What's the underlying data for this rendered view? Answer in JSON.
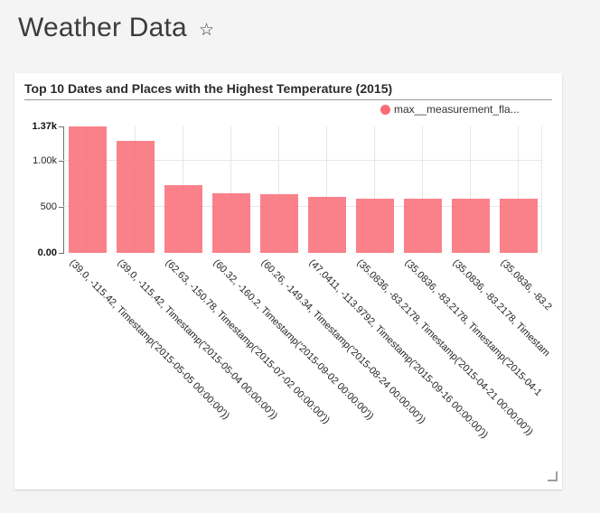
{
  "header": {
    "title": "Weather Data",
    "star_icon": "☆"
  },
  "chart": {
    "title": "Top 10 Dates and Places with the Highest Temperature (2015)",
    "legend": {
      "label": "max__measurement_fla...",
      "color": "#f96b75"
    }
  },
  "chart_data": {
    "type": "bar",
    "title": "Top 10 Dates and Places with the Highest Temperature (2015)",
    "legend_entries": [
      "max__measurement_fla..."
    ],
    "legend_position": "top-right",
    "categories": [
      "(39.0, -115.42, Timestamp('2015-05-05 00:00:00'))",
      "(39.0, -115.42, Timestamp('2015-05-04 00:00:00'))",
      "(62.63, -150.78, Timestamp('2015-07-02 00:00:00'))",
      "(60.32, -160.2, Timestamp('2015-09-02 00:00:00'))",
      "(60.26, -149.34, Timestamp('2015-08-24 00:00:00'))",
      "(47.0411, -113.9792, Timestamp('2015-09-16 00:00:00'))",
      "(35.0836, -83.2178, Timestamp('2015-04-21 00:00:00'))",
      "(35.0836, -83.2178, Timestamp('2015-04-1",
      "(35.0836, -83.2178, Timestam",
      "(35.0836, -83.2"
    ],
    "values": [
      1370,
      1210,
      735,
      650,
      638,
      602,
      590,
      590,
      590,
      590
    ],
    "ylim": [
      0,
      1370
    ],
    "y_tick_labels": [
      "0.00",
      "500",
      "1.00k",
      "1.37k"
    ],
    "y_tick_values": [
      0,
      500,
      1000,
      1370
    ],
    "y_tick_bold_labels": [
      "0.00",
      "1.37k"
    ],
    "x_label_rotation_deg": 45,
    "grid": true,
    "bar_color": "#f96b75",
    "bar_opacity": 0.85,
    "xlabel": "",
    "ylabel": ""
  }
}
